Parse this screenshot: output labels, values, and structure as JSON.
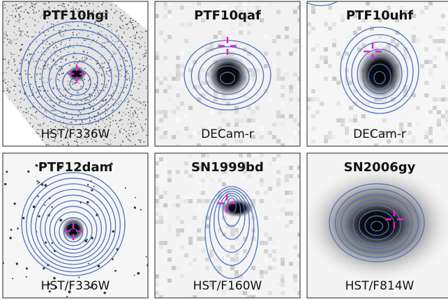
{
  "panels": [
    {
      "title": "PTF10hgi",
      "filter": "HST/F336W"
    },
    {
      "title": "PTF10qaf",
      "filter": "DECam-r"
    },
    {
      "title": "PTF10uhf",
      "filter": "DECam-r"
    },
    {
      "title": "PTF12dam",
      "filter": "HST/F336W"
    },
    {
      "title": "SN1999bd",
      "filter": "HST/F160W"
    },
    {
      "title": "SN2006gy",
      "filter": "HST/F814W"
    }
  ]
}
